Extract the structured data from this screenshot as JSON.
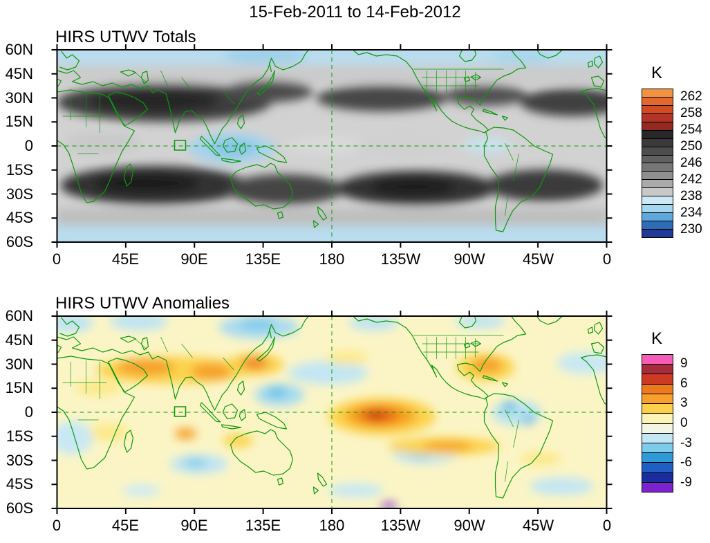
{
  "title": "15-Feb-2011 to 14-Feb-2012",
  "axis": {
    "lat_labels": [
      "60N",
      "45N",
      "30N",
      "15N",
      "0",
      "15S",
      "30S",
      "45S",
      "60S"
    ],
    "lon_labels": [
      "0",
      "45E",
      "90E",
      "135E",
      "180",
      "135W",
      "90W",
      "45W",
      "0"
    ]
  },
  "map_overlay": {
    "coastline_color": "#0a9a0a",
    "reference_lines": "dashed green lines at the equator and at 180 longitude",
    "region_marker": "small green outlined box near 80E on the equator"
  },
  "panels": [
    {
      "title": "HIRS UTWV Totals",
      "colorbar": {
        "unit": "K",
        "labels": [
          "262",
          "258",
          "254",
          "250",
          "246",
          "242",
          "238",
          "234",
          "230"
        ],
        "colors": [
          "#f09343",
          "#e4672e",
          "#d44a24",
          "#b13426",
          "#93291f",
          "#282828",
          "#3a3a3a",
          "#4d4d4d",
          "#616161",
          "#777777",
          "#8f8f8f",
          "#aaaaaa",
          "#c8c8c8",
          "#cde9f5",
          "#a4d6ee",
          "#5fa8dc",
          "#2f6cb8",
          "#1e3a96"
        ]
      }
    },
    {
      "title": "HIRS UTWV Anomalies",
      "colorbar": {
        "unit": "K",
        "labels": [
          "9",
          "6",
          "3",
          "0",
          "-3",
          "-6",
          "-9"
        ],
        "colors": [
          "#f45cb8",
          "#a62c3c",
          "#cd3a23",
          "#ef7a1e",
          "#f9a02a",
          "#fdd04a",
          "#fdf3b4",
          "#f3f6e2",
          "#c3e7f4",
          "#7ecbeb",
          "#2f9ad8",
          "#1f5fc4",
          "#1b2d9e",
          "#7b22cc"
        ]
      }
    }
  ],
  "chart_data": [
    {
      "type": "heatmap",
      "title": "HIRS UTWV Totals",
      "units": "K",
      "x_ticks": [
        "0",
        "45E",
        "90E",
        "135E",
        "180",
        "135W",
        "90W",
        "45W",
        "0"
      ],
      "y_ticks": [
        "60N",
        "45N",
        "30N",
        "15N",
        "0",
        "15S",
        "30S",
        "45S",
        "60S"
      ],
      "x_range_deg_east": [
        0,
        360
      ],
      "y_range_deg": [
        60,
        -60
      ],
      "levels_K": [
        230,
        234,
        238,
        242,
        246,
        250,
        254,
        258,
        262
      ],
      "legend_position": "right",
      "grid_lons_deg_east": [
        0,
        22.5,
        45,
        67.5,
        90,
        112.5,
        135,
        157.5,
        180,
        202.5,
        225,
        247.5,
        270,
        292.5,
        315,
        337.5
      ],
      "grid_lats_deg": [
        60,
        45,
        30,
        15,
        0,
        -15,
        -30,
        -45,
        -60
      ],
      "values_K": [
        [
          238,
          238,
          239,
          239,
          238,
          237,
          236,
          237,
          238,
          239,
          239,
          238,
          237,
          236,
          237,
          238
        ],
        [
          242,
          243,
          243,
          244,
          243,
          242,
          241,
          242,
          243,
          244,
          244,
          243,
          242,
          241,
          241,
          242
        ],
        [
          248,
          250,
          251,
          252,
          250,
          246,
          244,
          246,
          248,
          250,
          250,
          248,
          248,
          246,
          248,
          248
        ],
        [
          246,
          248,
          250,
          248,
          244,
          240,
          242,
          244,
          246,
          248,
          247,
          246,
          244,
          243,
          246,
          246
        ],
        [
          242,
          244,
          243,
          240,
          236,
          235,
          238,
          242,
          244,
          244,
          243,
          242,
          238,
          240,
          242,
          242
        ],
        [
          246,
          248,
          250,
          250,
          248,
          246,
          244,
          246,
          248,
          250,
          250,
          248,
          246,
          246,
          248,
          248
        ],
        [
          246,
          247,
          248,
          249,
          248,
          246,
          245,
          246,
          248,
          249,
          248,
          247,
          246,
          245,
          246,
          246
        ],
        [
          240,
          241,
          241,
          242,
          241,
          240,
          240,
          240,
          241,
          241,
          241,
          240,
          240,
          239,
          240,
          240
        ],
        [
          236,
          236,
          236,
          237,
          236,
          236,
          235,
          236,
          236,
          236,
          236,
          236,
          235,
          235,
          236,
          236
        ]
      ],
      "features": [
        "Dark gray bands of high brightness temperature (246-254 K) along the subtropics of both hemispheres",
        "Lightest values (232-238 K, light blue) over the Maritime Continent near the equator and poleward of about 55 degrees",
        "Green coastlines and country/state boundaries overlaid",
        "Dashed reference lines at the equator and at 180 longitude; small green box marker near 80E, 0N"
      ]
    },
    {
      "type": "heatmap",
      "title": "HIRS UTWV Anomalies",
      "units": "K",
      "x_ticks": [
        "0",
        "45E",
        "90E",
        "135E",
        "180",
        "135W",
        "90W",
        "45W",
        "0"
      ],
      "y_ticks": [
        "60N",
        "45N",
        "30N",
        "15N",
        "0",
        "15S",
        "30S",
        "45S",
        "60S"
      ],
      "x_range_deg_east": [
        0,
        360
      ],
      "y_range_deg": [
        60,
        -60
      ],
      "levels_K": [
        -9,
        -6,
        -3,
        0,
        3,
        6,
        9
      ],
      "legend_position": "right",
      "grid_lons_deg_east": [
        0,
        22.5,
        45,
        67.5,
        90,
        112.5,
        135,
        157.5,
        180,
        202.5,
        225,
        247.5,
        270,
        292.5,
        315,
        337.5
      ],
      "grid_lats_deg": [
        60,
        45,
        30,
        15,
        0,
        -15,
        -30,
        -45,
        -60
      ],
      "values_K": [
        [
          0.5,
          0.5,
          1,
          0.5,
          -1,
          0.5,
          1,
          -1,
          0.5,
          -1,
          0.5,
          1,
          0.5,
          -1,
          0.5,
          0.5
        ],
        [
          1,
          0.5,
          1,
          2,
          1,
          0.5,
          -1,
          -1,
          0.5,
          0.5,
          1,
          0.5,
          1,
          0.5,
          -1,
          0.5
        ],
        [
          0.5,
          1,
          3,
          4,
          3,
          4,
          2,
          -2,
          -1,
          0.5,
          1,
          3,
          2,
          0.5,
          -2,
          0.5
        ],
        [
          1,
          2,
          2,
          1,
          2,
          -2,
          -1,
          -1,
          0.5,
          1,
          1,
          2,
          1,
          -2,
          -1,
          0.5
        ],
        [
          0.5,
          1,
          1,
          0.5,
          -2,
          -1,
          0.5,
          2,
          5,
          2,
          1,
          0.5,
          -2,
          -1,
          0.5,
          0.5
        ],
        [
          1,
          0.5,
          2,
          -2,
          1,
          0.5,
          -1,
          -2,
          1,
          2,
          3,
          2,
          -1,
          0.5,
          1,
          0.5
        ],
        [
          0.5,
          1,
          0.5,
          -1,
          -1,
          2,
          1,
          0.5,
          -1,
          -2,
          1,
          2,
          0.5,
          1,
          -1,
          0.5
        ],
        [
          0.5,
          -1,
          0.5,
          0.5,
          -1,
          0.5,
          -1,
          1,
          0.5,
          -1,
          0.5,
          -1,
          1,
          0.5,
          -2,
          0.5
        ],
        [
          0.5,
          0.5,
          -1,
          0.5,
          0.5,
          -1,
          0.5,
          0.5,
          -1,
          0.5,
          0.5,
          -1,
          0.5,
          -1,
          0.5,
          0.5
        ]
      ],
      "features": [
        "Strong positive anomaly (up to about +7 K, red core) centered near 178W on the equator in the central Pacific",
        "Positive anomalies (+3 to +6 K, orange) over North Africa / Middle East near 30N, east Asia near 30N, and Mexico / southern United States",
        "Positive band (+3 K, yellow-orange) stretching east-southeast across the South Pacific near 15-25S",
        "Weak negative anomalies (-1.5 to -3 K, light blue) over the west Pacific warm pool, south Indian Ocean, northern South America, North Atlantic and high latitudes",
        "Background mostly 0 to +1.5 K (pale yellow)"
      ]
    }
  ]
}
